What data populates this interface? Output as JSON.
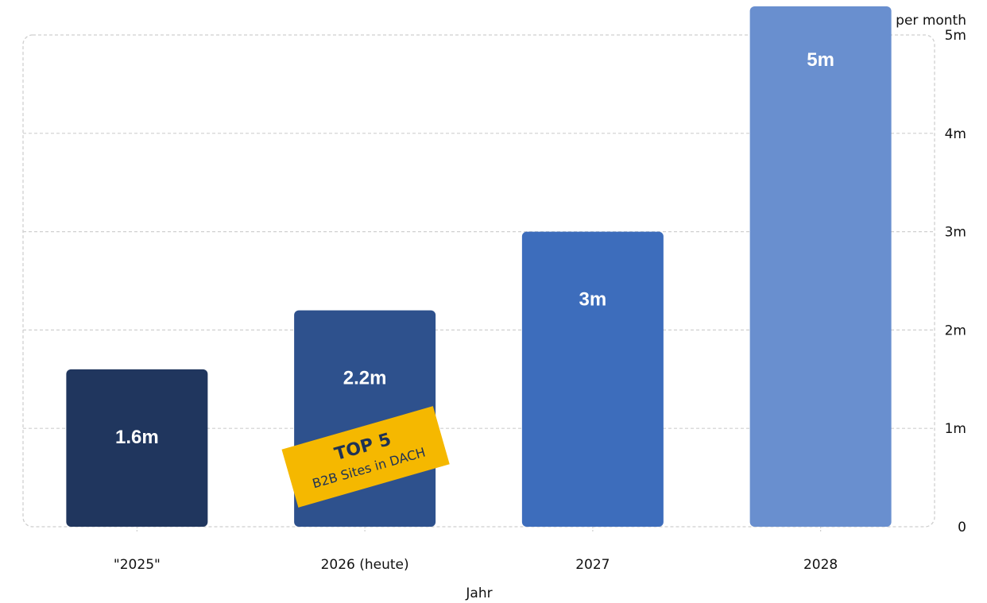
{
  "chart_data": {
    "type": "bar",
    "categories": [
      "\"2025\"",
      "2026 (heute)",
      "2027",
      "2028"
    ],
    "values": [
      1.6,
      2.2,
      3.0,
      5.0
    ],
    "value_labels": [
      "1.6m",
      "2.2m",
      "3m",
      "5m"
    ],
    "bar_colors": [
      "#20365e",
      "#2e518d",
      "#3d6dbc",
      "#698fcf"
    ],
    "xlabel": "Jahr",
    "ylabel": "per month",
    "ylim": [
      0,
      5
    ],
    "y_ticks": [
      {
        "value": 0,
        "label": "0"
      },
      {
        "value": 1,
        "label": "1m"
      },
      {
        "value": 2,
        "label": "2m"
      },
      {
        "value": 3,
        "label": "3m"
      },
      {
        "value": 4,
        "label": "4m"
      },
      {
        "value": 5,
        "label": "5m"
      }
    ],
    "y_axis_position": "right",
    "grid": true,
    "annotation": {
      "category_index": 1,
      "title": "TOP 5",
      "subtitle": "B2B Sites in DACH",
      "color": "#f5b800"
    }
  }
}
